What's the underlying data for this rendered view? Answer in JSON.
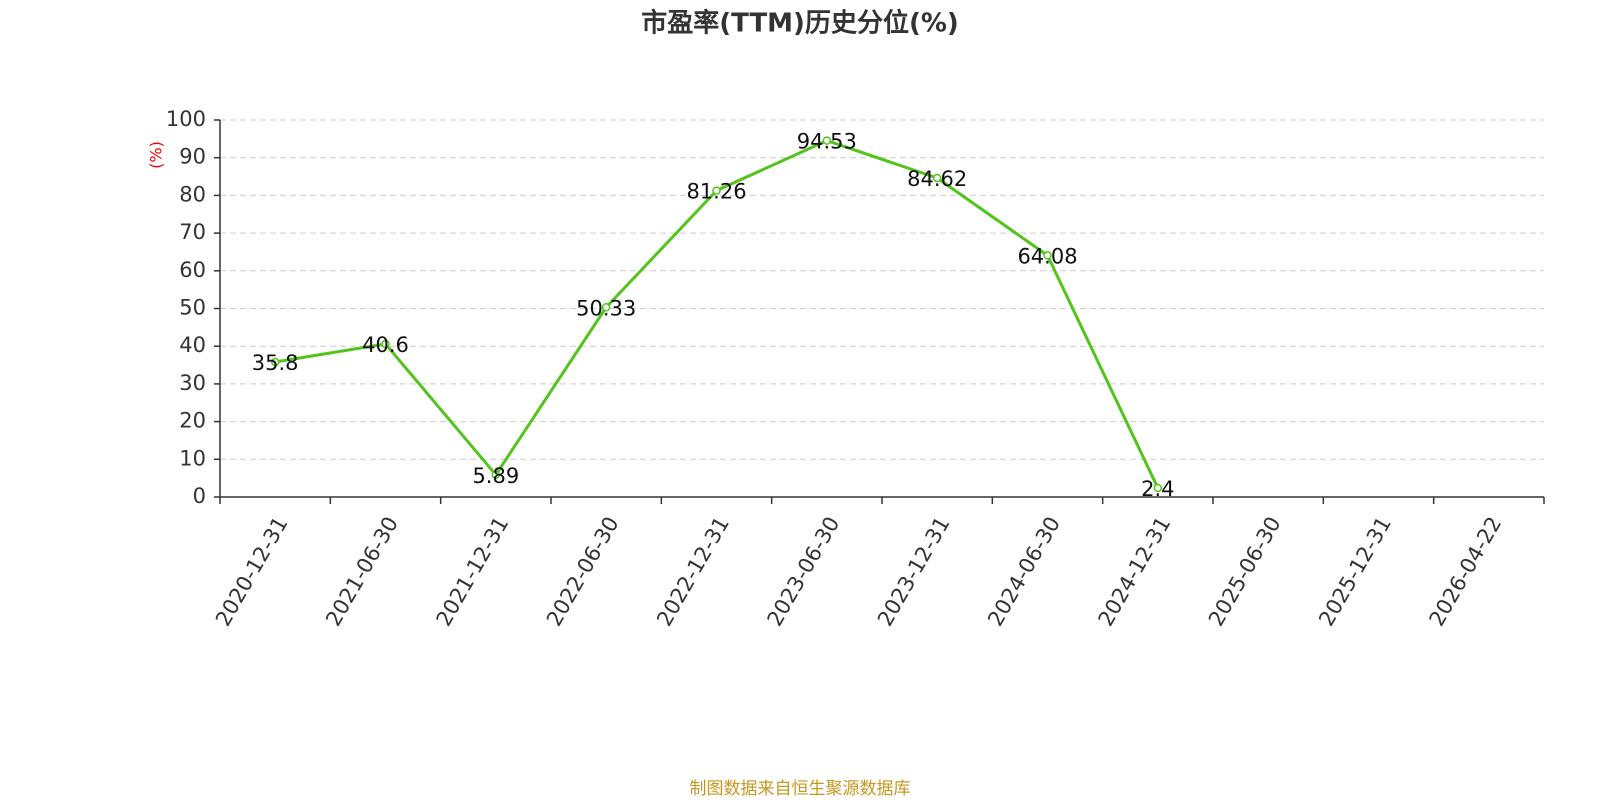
{
  "chart_data": {
    "type": "line",
    "title": "市盈率(TTM)历史分位(%)",
    "y_label": "(%)",
    "categories": [
      "2020-12-31",
      "2021-06-30",
      "2021-12-31",
      "2022-06-30",
      "2022-12-31",
      "2023-06-30",
      "2023-12-31",
      "2024-06-30",
      "2024-12-31",
      "2025-06-30",
      "2025-12-31",
      "2026-04-22"
    ],
    "values": [
      35.8,
      40.6,
      5.89,
      50.33,
      81.26,
      94.53,
      84.62,
      64.08,
      2.4,
      null,
      null,
      null
    ],
    "color": "#52c41a",
    "ylim": [
      0,
      100
    ],
    "yticks": [
      0,
      10,
      20,
      30,
      40,
      50,
      60,
      70,
      80,
      90,
      100
    ],
    "grid": true,
    "source": "制图数据来自恒生聚源数据库"
  }
}
